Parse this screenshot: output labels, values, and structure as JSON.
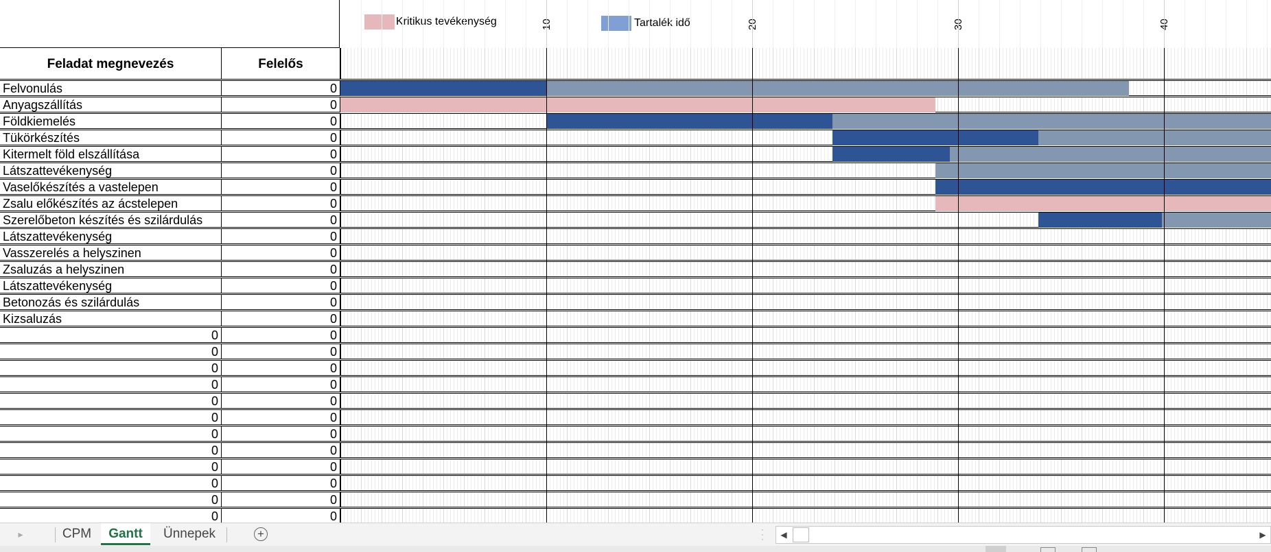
{
  "legend": {
    "critical_label": "Kritikus tevékenység",
    "critical_color": "#e7b8bb",
    "slack_label": "Tartalék idő",
    "slack_color": "#7f9fd6"
  },
  "week_labels": [
    "10",
    "20",
    "30",
    "40"
  ],
  "columns": {
    "task_name": "Feladat megnevezés",
    "responsible": "Felelős"
  },
  "bar_colors": {
    "duration": "#2f5496",
    "slack": "#8497b0",
    "critical": "#e7b8bb"
  },
  "tasks": [
    {
      "name": "Felvonulás",
      "responsible": "0"
    },
    {
      "name": "Anyagszállítás",
      "responsible": "0"
    },
    {
      "name": "Földkiemelés",
      "responsible": "0"
    },
    {
      "name": "Tükörkészítés",
      "responsible": "0"
    },
    {
      "name": "Kitermelt föld elszállítása",
      "responsible": "0"
    },
    {
      "name": "Látszattevékenység",
      "responsible": "0"
    },
    {
      "name": "Vaselőkészítés a vastelepen",
      "responsible": "0"
    },
    {
      "name": "Zsalu előkészítés az ácstelepen",
      "responsible": "0"
    },
    {
      "name": "Szerelőbeton készítés és szilárdulás",
      "responsible": "0"
    },
    {
      "name": "Látszattevékenység",
      "responsible": "0"
    },
    {
      "name": "Vasszerelés a helyszinen",
      "responsible": "0"
    },
    {
      "name": "Zsaluzás a helyszinen",
      "responsible": "0"
    },
    {
      "name": "Látszattevékenység",
      "responsible": "0"
    },
    {
      "name": "Betonozás és szilárdulás",
      "responsible": "0"
    },
    {
      "name": "Kizsaluzás",
      "responsible": "0"
    },
    {
      "name": "0",
      "responsible": "0"
    },
    {
      "name": "0",
      "responsible": "0"
    },
    {
      "name": "0",
      "responsible": "0"
    },
    {
      "name": "0",
      "responsible": "0"
    },
    {
      "name": "0",
      "responsible": "0"
    },
    {
      "name": "0",
      "responsible": "0"
    },
    {
      "name": "0",
      "responsible": "0"
    },
    {
      "name": "0",
      "responsible": "0"
    },
    {
      "name": "0",
      "responsible": "0"
    },
    {
      "name": "0",
      "responsible": "0"
    },
    {
      "name": "0",
      "responsible": "0"
    },
    {
      "name": "0",
      "responsible": "0"
    }
  ],
  "schedule": [
    {
      "row": 0,
      "start": 0,
      "duration": 10,
      "slack": 28.3,
      "critical": 0
    },
    {
      "row": 1,
      "start": 0,
      "duration": 0,
      "slack": 0,
      "critical": 28.9
    },
    {
      "row": 2,
      "start": 10,
      "duration": 13.9,
      "slack": 23.1,
      "critical": 0
    },
    {
      "row": 3,
      "start": 23.9,
      "duration": 10,
      "slack": 13.1,
      "critical": 0
    },
    {
      "row": 4,
      "start": 23.9,
      "duration": 5.7,
      "slack": 17.4,
      "critical": 0
    },
    {
      "row": 5,
      "start": 28.9,
      "duration": 0,
      "slack": 18.1,
      "critical": 0
    },
    {
      "row": 6,
      "start": 28.9,
      "duration": 18.1,
      "slack": 0,
      "critical": 0
    },
    {
      "row": 7,
      "start": 28.9,
      "duration": 0,
      "slack": 0,
      "critical": 18.1
    },
    {
      "row": 8,
      "start": 33.9,
      "duration": 6,
      "slack": 7.1,
      "critical": 0
    }
  ],
  "sheet_tabs": [
    {
      "label": "CPM",
      "active": false
    },
    {
      "label": "Gantt",
      "active": true
    },
    {
      "label": "Ünnepek",
      "active": false
    }
  ]
}
